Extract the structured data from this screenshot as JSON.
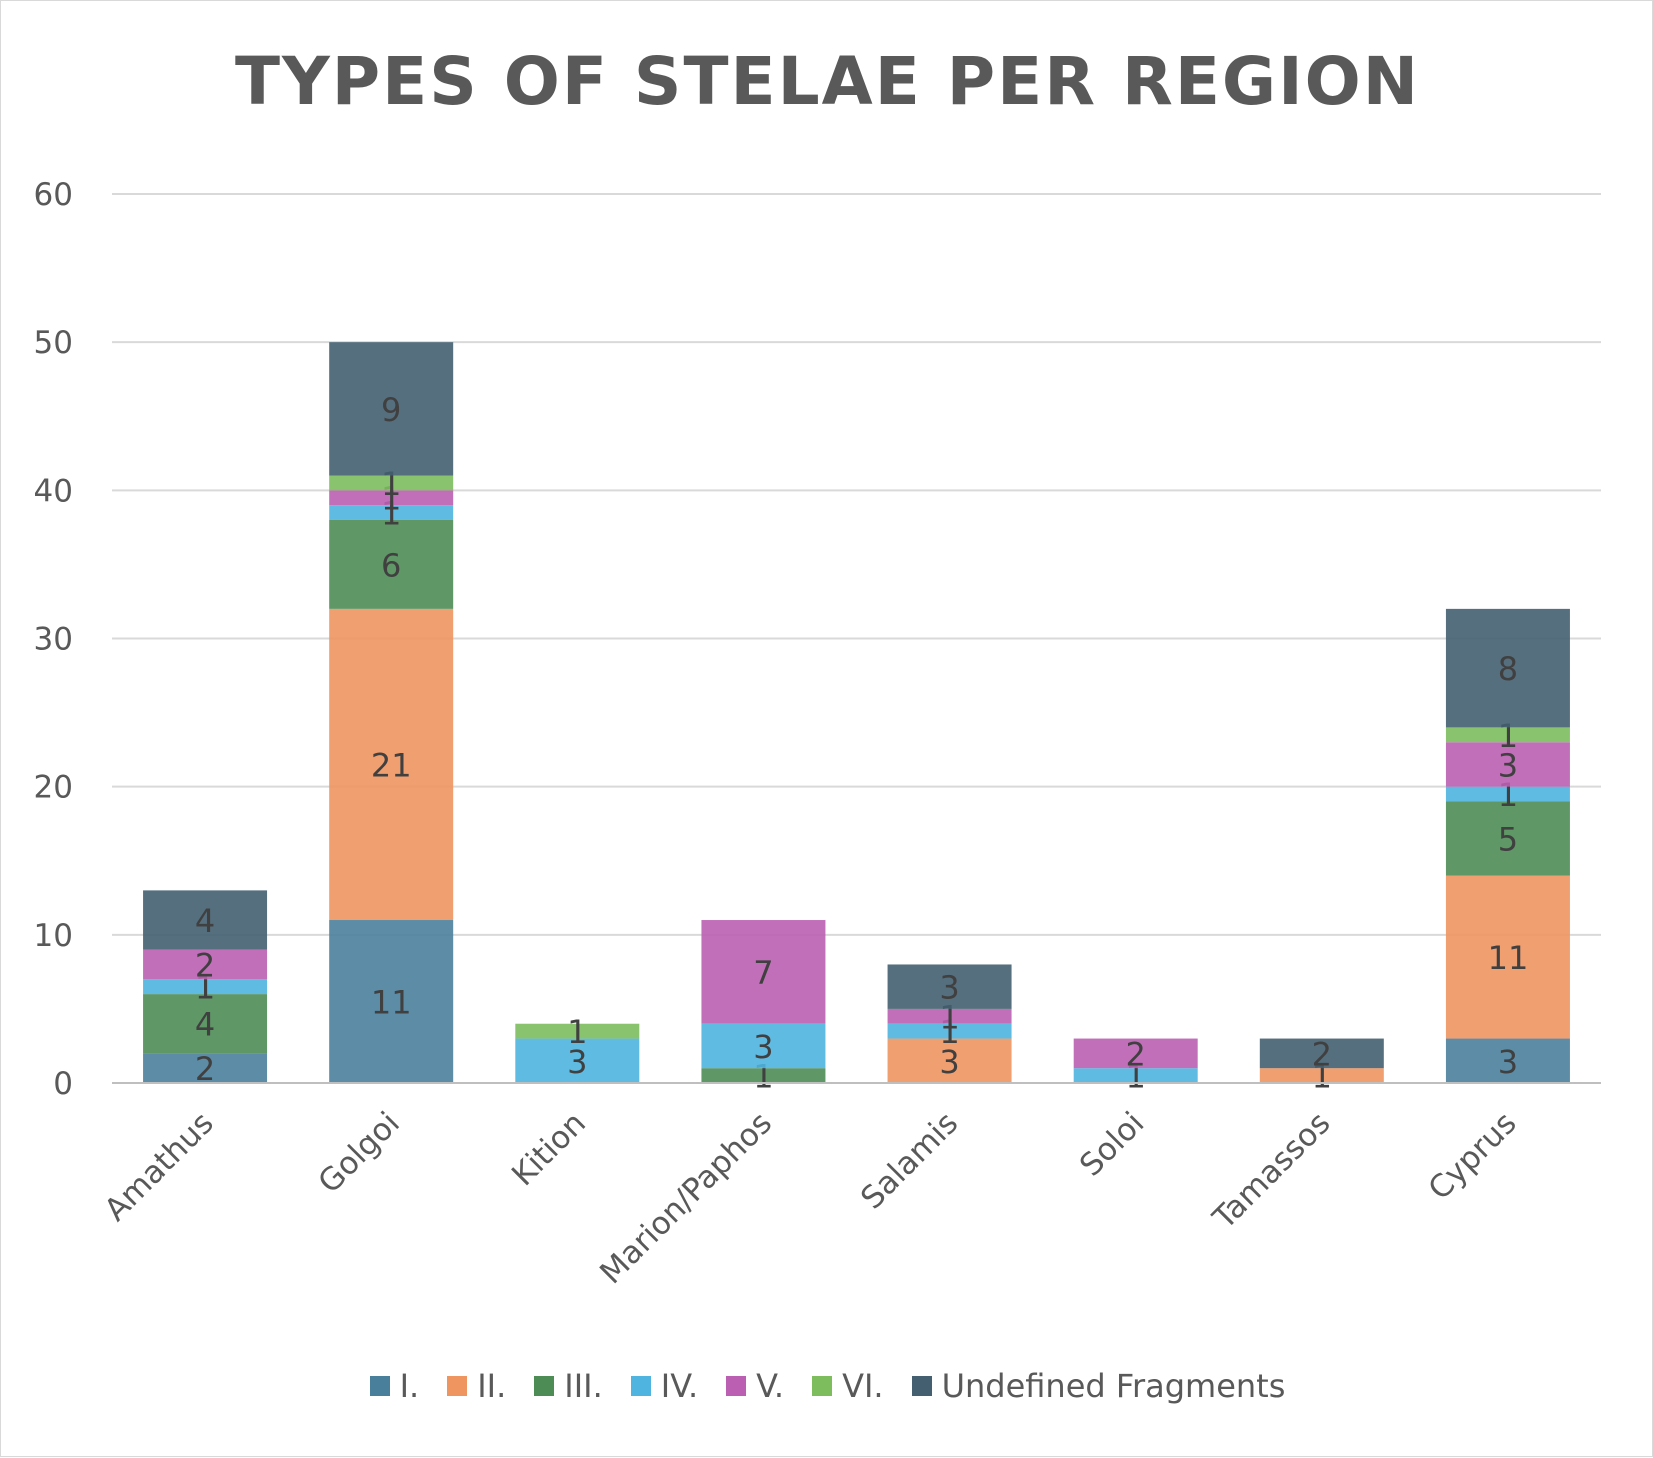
{
  "chart_data": {
    "type": "bar",
    "stacked": true,
    "title": "TYPES OF STELAE PER REGION",
    "xlabel": "",
    "ylabel": "",
    "ylim": [
      0,
      60
    ],
    "yticks": [
      0,
      10,
      20,
      30,
      40,
      50,
      60
    ],
    "grid": true,
    "legend_position": "bottom",
    "categories": [
      "Amathus",
      "Golgoi",
      "Kition",
      "Marion/Paphos",
      "Salamis",
      "Soloi",
      "Tamassos",
      "Cyprus"
    ],
    "series": [
      {
        "name": "I.",
        "color": "#4a7f9c",
        "values": [
          2,
          11,
          0,
          0,
          0,
          0,
          0,
          3
        ]
      },
      {
        "name": "II.",
        "color": "#ee9560",
        "values": [
          0,
          21,
          0,
          0,
          3,
          0,
          1,
          11
        ]
      },
      {
        "name": "III.",
        "color": "#4e8c55",
        "values": [
          4,
          6,
          0,
          1,
          0,
          0,
          0,
          5
        ]
      },
      {
        "name": "IV.",
        "color": "#4fb4e0",
        "values": [
          1,
          1,
          3,
          3,
          1,
          1,
          0,
          1
        ]
      },
      {
        "name": "V.",
        "color": "#bb5fb3",
        "values": [
          2,
          1,
          0,
          7,
          1,
          2,
          0,
          3
        ]
      },
      {
        "name": "VI.",
        "color": "#7dbd5e",
        "values": [
          0,
          1,
          1,
          0,
          0,
          0,
          0,
          1
        ]
      },
      {
        "name": "Undefined Fragments",
        "color": "#445f70",
        "values": [
          4,
          9,
          0,
          0,
          3,
          0,
          2,
          8
        ]
      }
    ]
  }
}
